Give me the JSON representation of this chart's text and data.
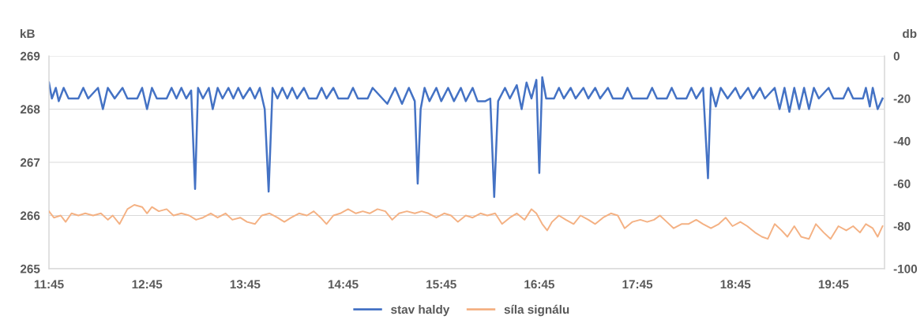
{
  "chart_data": {
    "type": "line",
    "xlim": [
      11.75,
      20.27
    ],
    "xticks": [
      {
        "value": 11.75,
        "label": "11:45"
      },
      {
        "value": 12.75,
        "label": "12:45"
      },
      {
        "value": 13.75,
        "label": "13:45"
      },
      {
        "value": 14.75,
        "label": "14:45"
      },
      {
        "value": 15.75,
        "label": "15:45"
      },
      {
        "value": 16.75,
        "label": "16:45"
      },
      {
        "value": 17.75,
        "label": "17:45"
      },
      {
        "value": 18.75,
        "label": "18:45"
      },
      {
        "value": 19.75,
        "label": "19:45"
      }
    ],
    "ylabel": "kB",
    "y2label": "db",
    "ylim": [
      265,
      269
    ],
    "yticks": [
      265,
      266,
      267,
      268,
      269
    ],
    "y2lim": [
      -100,
      0
    ],
    "y2ticks": [
      -100,
      -80,
      -60,
      -40,
      -20,
      0
    ],
    "grid": "y",
    "legend": "bottom",
    "marker": "none",
    "line_style": "solid",
    "series": [
      {
        "name": "stav haldy",
        "color": "#4472c4",
        "axis": "y",
        "x": [
          11.75,
          11.78,
          11.82,
          11.85,
          11.9,
          11.95,
          12.05,
          12.1,
          12.15,
          12.25,
          12.3,
          12.35,
          12.42,
          12.5,
          12.55,
          12.65,
          12.7,
          12.75,
          12.8,
          12.85,
          12.95,
          13.0,
          13.05,
          13.1,
          13.15,
          13.2,
          13.24,
          13.27,
          13.32,
          13.38,
          13.42,
          13.47,
          13.52,
          13.58,
          13.63,
          13.68,
          13.73,
          13.8,
          13.85,
          13.9,
          13.95,
          13.99,
          14.03,
          14.08,
          14.13,
          14.18,
          14.23,
          14.28,
          14.35,
          14.4,
          14.48,
          14.53,
          14.58,
          14.65,
          14.7,
          14.8,
          14.85,
          14.9,
          15.0,
          15.05,
          15.1,
          15.2,
          15.28,
          15.35,
          15.42,
          15.48,
          15.51,
          15.54,
          15.58,
          15.63,
          15.7,
          15.75,
          15.82,
          15.88,
          15.95,
          16.0,
          16.07,
          16.12,
          16.2,
          16.25,
          16.29,
          16.33,
          16.4,
          16.45,
          16.52,
          16.57,
          16.62,
          16.67,
          16.72,
          16.75,
          16.78,
          16.82,
          16.9,
          16.95,
          17.0,
          17.07,
          17.12,
          17.2,
          17.25,
          17.32,
          17.37,
          17.45,
          17.5,
          17.6,
          17.65,
          17.7,
          17.85,
          17.9,
          17.95,
          18.05,
          18.1,
          18.15,
          18.25,
          18.3,
          18.35,
          18.42,
          18.47,
          18.5,
          18.55,
          18.6,
          18.67,
          18.75,
          18.8,
          18.88,
          18.93,
          19.0,
          19.05,
          19.15,
          19.2,
          19.25,
          19.3,
          19.35,
          19.4,
          19.45,
          19.5,
          19.55,
          19.6,
          19.7,
          19.75,
          19.85,
          19.9,
          19.95,
          20.05,
          20.08,
          20.12,
          20.15,
          20.2,
          20.25
        ],
        "values": [
          268.5,
          268.2,
          268.4,
          268.15,
          268.4,
          268.2,
          268.2,
          268.4,
          268.2,
          268.4,
          268.0,
          268.4,
          268.2,
          268.4,
          268.2,
          268.2,
          268.4,
          268.0,
          268.4,
          268.2,
          268.2,
          268.4,
          268.2,
          268.4,
          268.2,
          268.35,
          266.5,
          268.4,
          268.2,
          268.4,
          268.0,
          268.4,
          268.2,
          268.4,
          268.2,
          268.4,
          268.2,
          268.4,
          268.2,
          268.4,
          268.0,
          266.45,
          268.4,
          268.2,
          268.4,
          268.2,
          268.4,
          268.2,
          268.4,
          268.2,
          268.2,
          268.4,
          268.2,
          268.4,
          268.2,
          268.2,
          268.4,
          268.2,
          268.2,
          268.4,
          268.3,
          268.1,
          268.4,
          268.1,
          268.4,
          268.15,
          266.6,
          268.0,
          268.4,
          268.15,
          268.4,
          268.15,
          268.4,
          268.15,
          268.4,
          268.15,
          268.4,
          268.15,
          268.15,
          268.2,
          266.35,
          268.15,
          268.4,
          268.2,
          268.45,
          268.0,
          268.5,
          268.2,
          268.55,
          266.8,
          268.6,
          268.2,
          268.2,
          268.4,
          268.2,
          268.4,
          268.2,
          268.4,
          268.2,
          268.4,
          268.2,
          268.4,
          268.2,
          268.2,
          268.4,
          268.2,
          268.2,
          268.4,
          268.2,
          268.2,
          268.4,
          268.2,
          268.2,
          268.4,
          268.2,
          268.4,
          266.7,
          268.4,
          268.05,
          268.4,
          268.2,
          268.4,
          268.2,
          268.4,
          268.2,
          268.4,
          268.2,
          268.4,
          268.0,
          268.4,
          267.95,
          268.4,
          268.0,
          268.4,
          268.0,
          268.4,
          268.2,
          268.4,
          268.2,
          268.2,
          268.4,
          268.2,
          268.2,
          268.4,
          268.05,
          268.4,
          268.0,
          268.2
        ]
      },
      {
        "name": "síla signálu",
        "color": "#f4b183",
        "axis": "y2",
        "x": [
          11.75,
          11.8,
          11.87,
          11.92,
          11.98,
          12.05,
          12.12,
          12.2,
          12.28,
          12.35,
          12.4,
          12.47,
          12.55,
          12.62,
          12.7,
          12.75,
          12.8,
          12.87,
          12.95,
          13.02,
          13.1,
          13.18,
          13.25,
          13.32,
          13.4,
          13.47,
          13.55,
          13.62,
          13.7,
          13.77,
          13.85,
          13.92,
          14.0,
          14.08,
          14.15,
          14.22,
          14.3,
          14.38,
          14.45,
          14.52,
          14.58,
          14.65,
          14.72,
          14.8,
          14.88,
          14.95,
          15.02,
          15.1,
          15.18,
          15.25,
          15.32,
          15.4,
          15.48,
          15.55,
          15.62,
          15.7,
          15.78,
          15.85,
          15.92,
          16.0,
          16.07,
          16.15,
          16.22,
          16.3,
          16.37,
          16.45,
          16.52,
          16.6,
          16.67,
          16.72,
          16.78,
          16.83,
          16.88,
          16.95,
          17.02,
          17.1,
          17.17,
          17.25,
          17.32,
          17.4,
          17.48,
          17.55,
          17.62,
          17.7,
          17.78,
          17.85,
          17.92,
          17.98,
          18.05,
          18.12,
          18.2,
          18.27,
          18.35,
          18.42,
          18.5,
          18.58,
          18.65,
          18.72,
          18.8,
          18.87,
          18.95,
          19.02,
          19.08,
          19.15,
          19.22,
          19.28,
          19.35,
          19.42,
          19.5,
          19.57,
          19.65,
          19.72,
          19.8,
          19.88,
          19.95,
          20.02,
          20.08,
          20.15,
          20.2,
          20.25
        ],
        "values": [
          -73,
          -76,
          -75,
          -78,
          -74,
          -75,
          -74,
          -75,
          -74,
          -77,
          -75,
          -79,
          -72,
          -70,
          -71,
          -74,
          -71,
          -73,
          -72,
          -75,
          -74,
          -75,
          -77,
          -76,
          -74,
          -76,
          -74,
          -77,
          -76,
          -78,
          -79,
          -75,
          -74,
          -76,
          -78,
          -76,
          -74,
          -75,
          -73,
          -76,
          -79,
          -75,
          -74,
          -72,
          -74,
          -73,
          -74,
          -72,
          -73,
          -77,
          -74,
          -73,
          -74,
          -73,
          -74,
          -76,
          -74,
          -75,
          -78,
          -75,
          -76,
          -74,
          -75,
          -74,
          -79,
          -76,
          -74,
          -77,
          -72,
          -74,
          -79,
          -82,
          -78,
          -75,
          -77,
          -79,
          -75,
          -77,
          -79,
          -76,
          -74,
          -75,
          -81,
          -78,
          -77,
          -78,
          -77,
          -75,
          -78,
          -81,
          -79,
          -79,
          -77,
          -79,
          -81,
          -79,
          -76,
          -80,
          -78,
          -80,
          -83,
          -85,
          -86,
          -79,
          -82,
          -85,
          -80,
          -85,
          -86,
          -79,
          -83,
          -86,
          -80,
          -82,
          -80,
          -83,
          -79,
          -81,
          -85,
          -80
        ]
      }
    ]
  }
}
